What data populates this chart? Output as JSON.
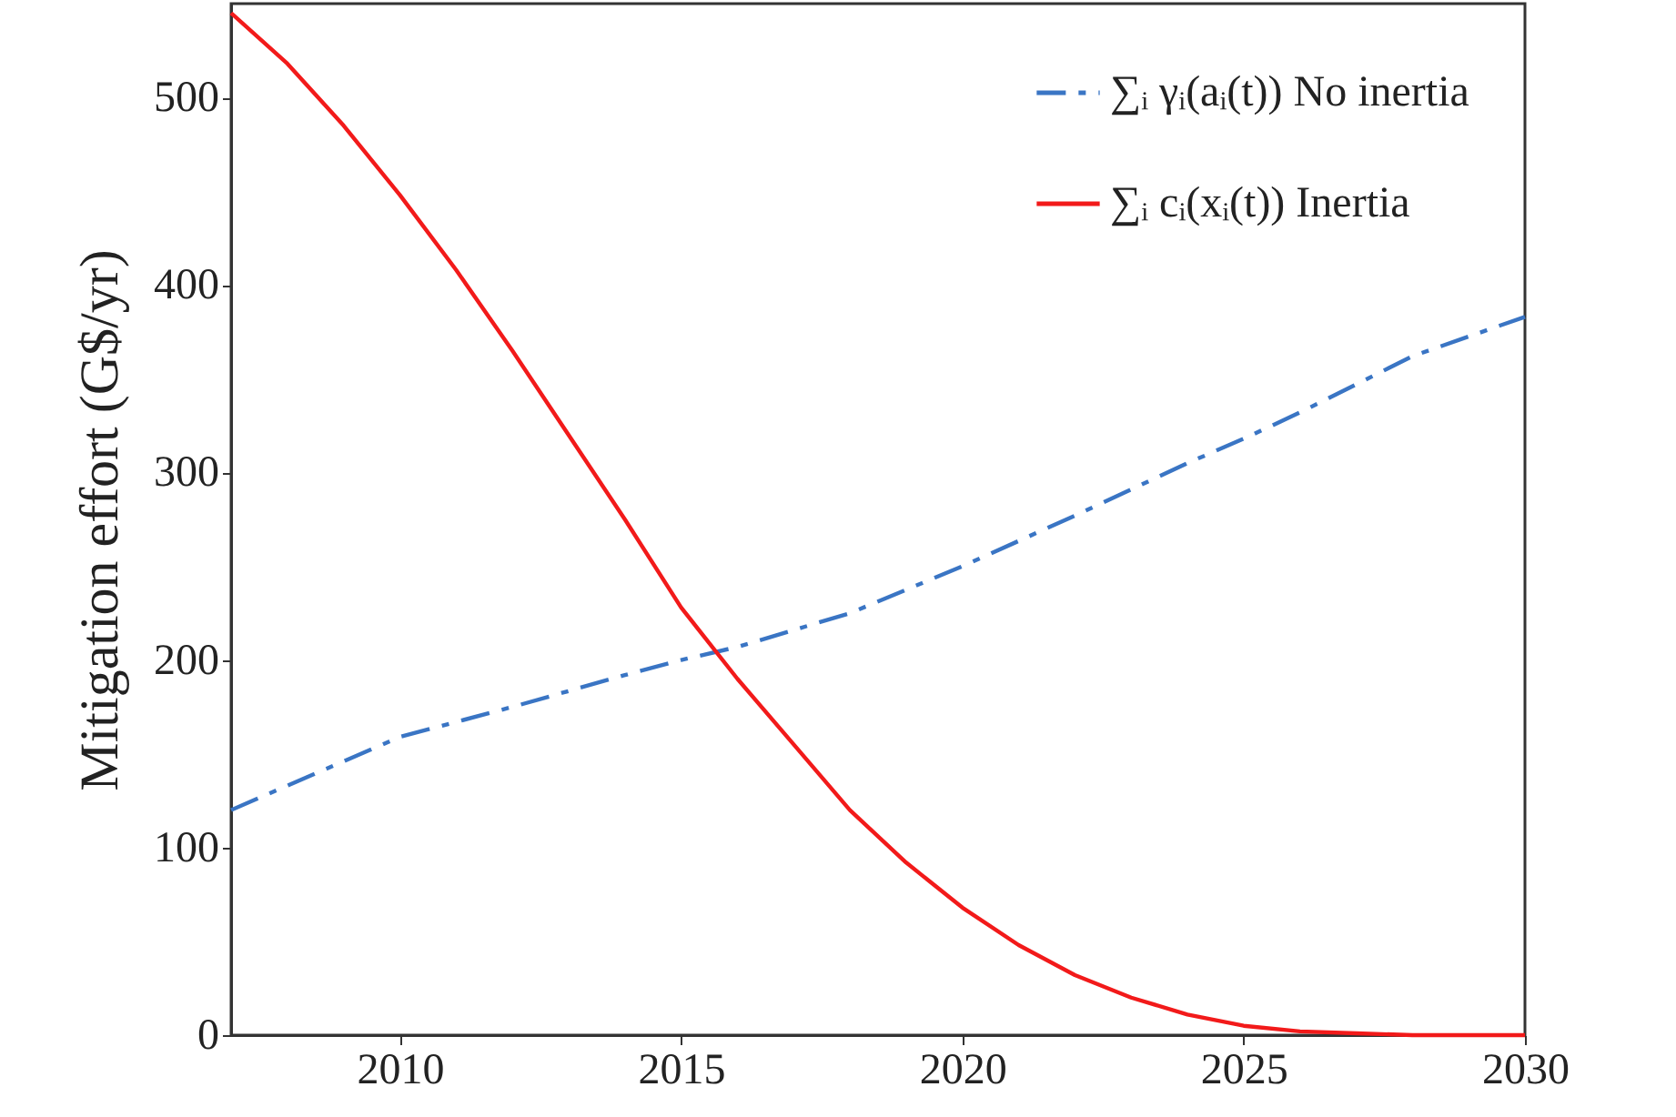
{
  "chart_data": {
    "type": "line",
    "ylabel": "Mitigation effort (G$/yr)",
    "xlim": [
      2007,
      2030
    ],
    "ylim": [
      0,
      550
    ],
    "xticks": [
      2010,
      2015,
      2020,
      2025,
      2030
    ],
    "yticks": [
      0,
      100,
      200,
      300,
      400,
      500
    ],
    "grid": false,
    "legend": "top right",
    "marker": "none",
    "series": [
      {
        "name": "∑ᵢ γᵢ(aᵢ(t)) No inertia",
        "color": "#3a75c4",
        "line_style": "dashed",
        "x": [
          2007,
          2008,
          2009,
          2010,
          2012,
          2014,
          2015,
          2016,
          2018,
          2020,
          2022,
          2024,
          2025,
          2026,
          2028,
          2030
        ],
        "values": [
          120,
          133,
          146,
          159,
          175,
          192,
          200,
          207,
          225,
          250,
          277,
          305,
          318,
          332,
          362,
          383
        ]
      },
      {
        "name": "∑ᵢ cᵢ(xᵢ(t)) Inertia",
        "color": "#f21a1a",
        "line_style": "solid",
        "x": [
          2007,
          2008,
          2009,
          2010,
          2011,
          2012,
          2013,
          2014,
          2015,
          2016,
          2017,
          2018,
          2019,
          2020,
          2021,
          2022,
          2023,
          2024,
          2025,
          2026,
          2027,
          2028,
          2030
        ],
        "values": [
          545,
          518,
          485,
          448,
          408,
          365,
          320,
          275,
          228,
          190,
          155,
          120,
          92,
          68,
          48,
          32,
          20,
          11,
          5,
          2,
          1,
          0,
          0
        ]
      }
    ]
  }
}
